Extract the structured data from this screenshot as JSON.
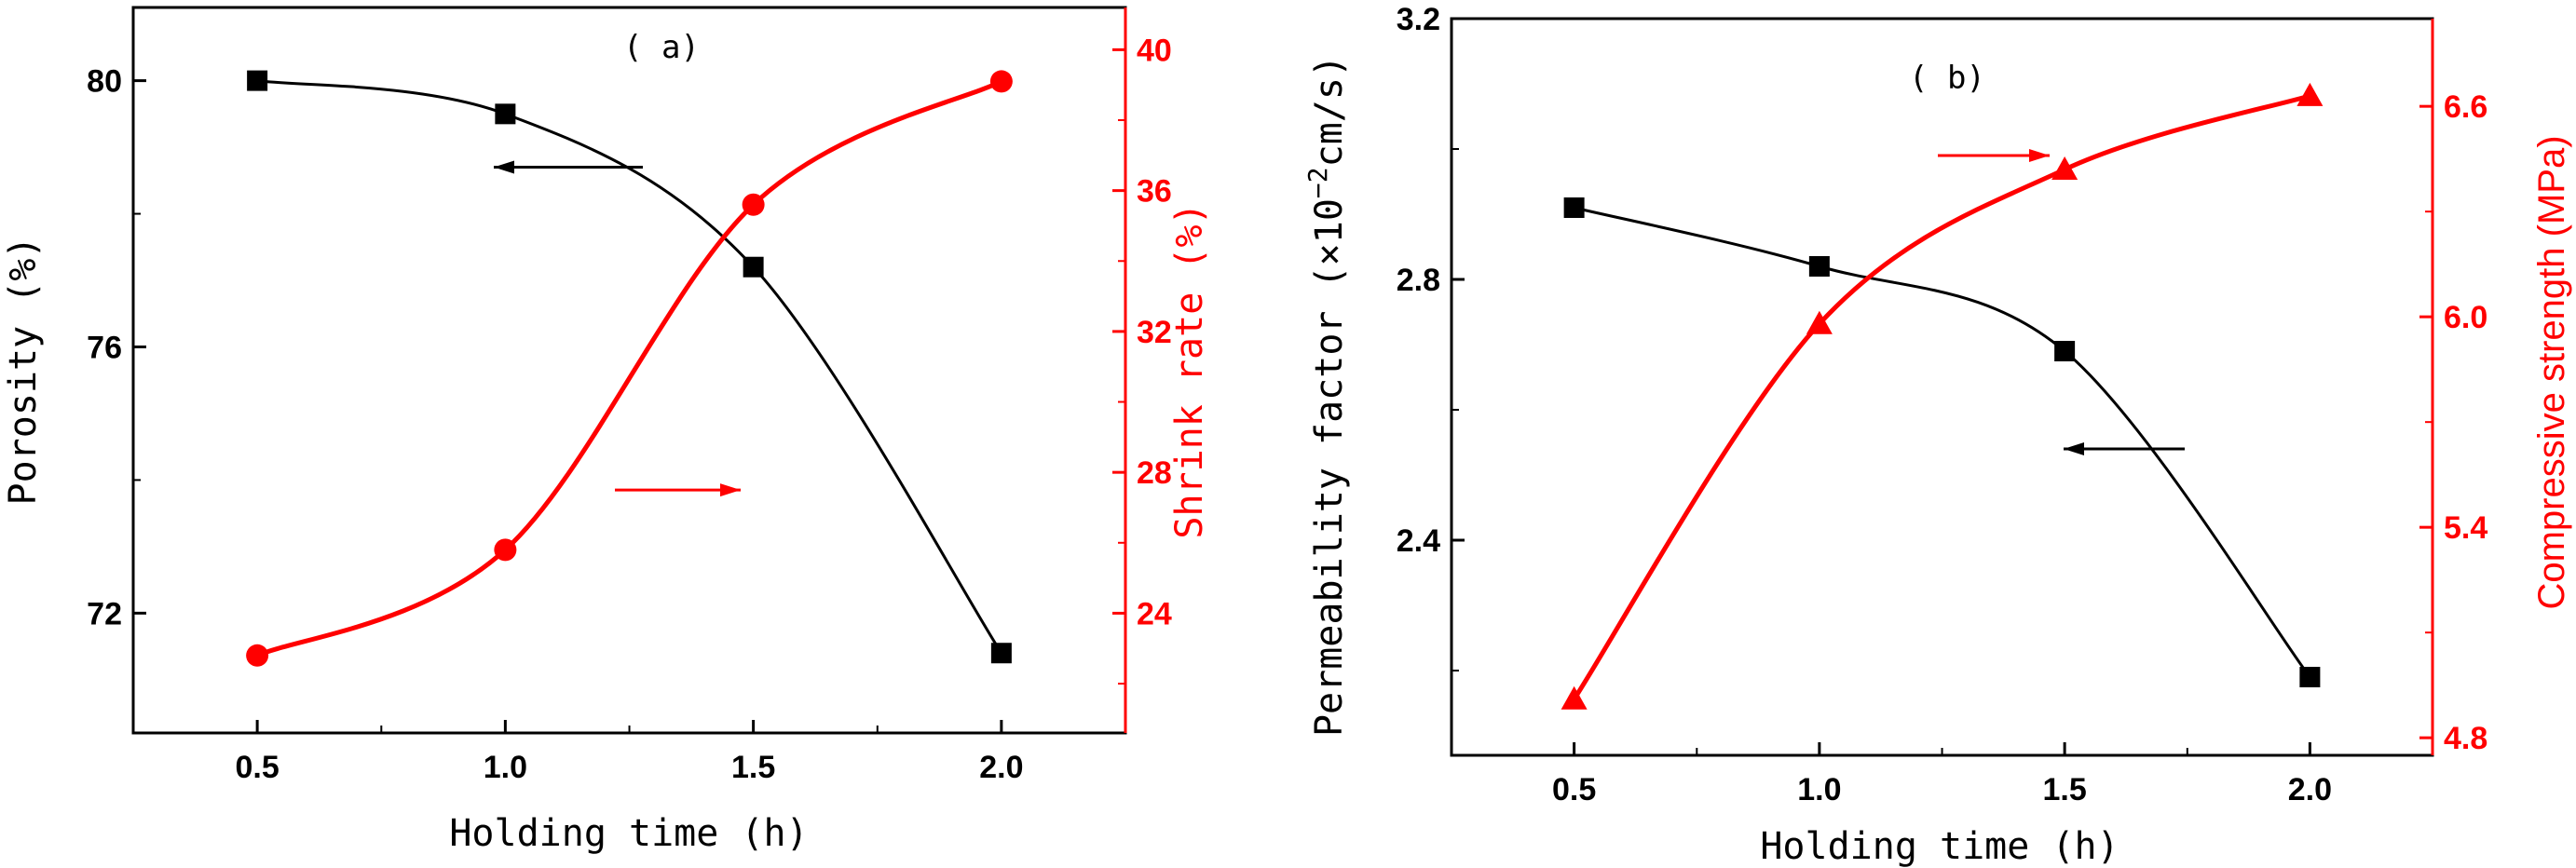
{
  "colors": {
    "black": "#000000",
    "red": "#ff0000"
  },
  "chart_data": [
    {
      "type": "line",
      "panel_label": "( a)",
      "xlabel": "Holding time (h)",
      "xlim": [
        0.25,
        2.25
      ],
      "xticks": [
        0.5,
        1.0,
        1.5,
        2.0
      ],
      "xtick_labels": [
        "0.5",
        "1.0",
        "1.5",
        "2.0"
      ],
      "left_axis": {
        "label": "Porosity (%)",
        "ylim": [
          70.2,
          81.1
        ],
        "ticks": [
          72,
          76,
          80
        ],
        "tick_labels": [
          "72",
          "76",
          "80"
        ],
        "color": "#000000"
      },
      "right_axis": {
        "label": "Shrink rate (%)",
        "ylim": [
          20.6,
          41.2
        ],
        "ticks": [
          24,
          28,
          32,
          36,
          40
        ],
        "tick_labels": [
          "24",
          "28",
          "32",
          "36",
          "40"
        ],
        "color": "#ff0000"
      },
      "x": [
        0.5,
        1.0,
        1.5,
        2.0
      ],
      "series": [
        {
          "axis": "left",
          "marker": "square",
          "color": "#000000",
          "values": [
            80.0,
            79.5,
            77.2,
            71.4
          ]
        },
        {
          "axis": "right",
          "marker": "circle",
          "color": "#ff0000",
          "values": [
            22.8,
            25.8,
            35.6,
            39.1
          ]
        }
      ],
      "indicator_arrows": [
        {
          "points_to": "left",
          "color": "#000000"
        },
        {
          "points_to": "right",
          "color": "#ff0000"
        }
      ]
    },
    {
      "type": "line",
      "panel_label": "( b)",
      "xlabel": "Holding time (h)",
      "xlim": [
        0.25,
        2.25
      ],
      "xticks": [
        0.5,
        1.0,
        1.5,
        2.0
      ],
      "xtick_labels": [
        "0.5",
        "1.0",
        "1.5",
        "2.0"
      ],
      "left_axis": {
        "label_main": "Permeability factor (×10",
        "label_sup": "−2",
        "label_tail": "cm/s)",
        "ylim": [
          2.07,
          3.2
        ],
        "ticks": [
          2.4,
          2.8,
          3.2
        ],
        "tick_labels": [
          "2.4",
          "2.8",
          "3.2"
        ],
        "color": "#000000"
      },
      "right_axis": {
        "label": "Compressive strength (MPa)",
        "ylim": [
          4.75,
          6.85
        ],
        "ticks": [
          4.8,
          5.4,
          6.0,
          6.6
        ],
        "tick_labels": [
          "4.8",
          "5.4",
          "6.0",
          "6.6"
        ],
        "color": "#ff0000"
      },
      "x": [
        0.5,
        1.0,
        1.5,
        2.0
      ],
      "series": [
        {
          "axis": "left",
          "marker": "square",
          "color": "#000000",
          "values": [
            2.91,
            2.82,
            2.69,
            2.19
          ]
        },
        {
          "axis": "right",
          "marker": "triangle",
          "color": "#ff0000",
          "values": [
            4.91,
            5.98,
            6.42,
            6.63
          ]
        }
      ],
      "indicator_arrows": [
        {
          "points_to": "right",
          "color": "#ff0000"
        },
        {
          "points_to": "left",
          "color": "#000000"
        }
      ]
    }
  ]
}
